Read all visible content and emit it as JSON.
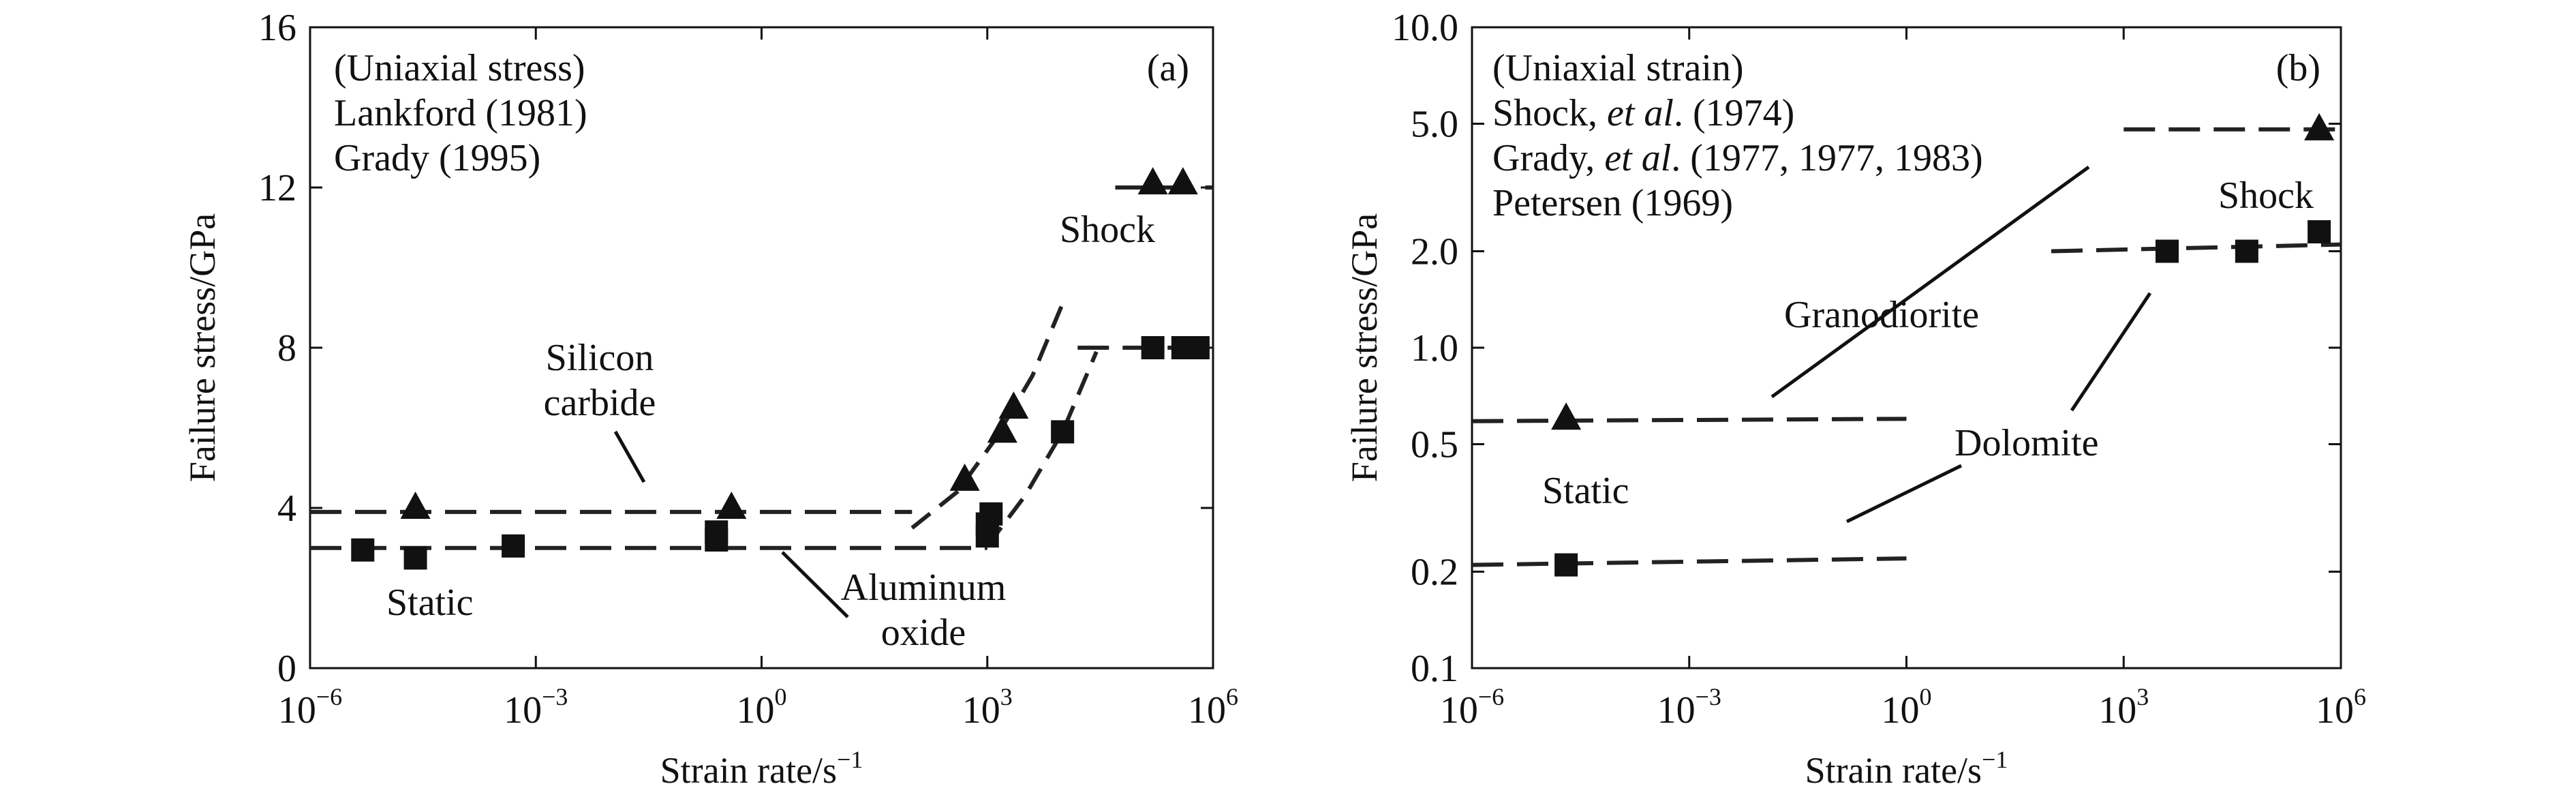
{
  "chart_data": [
    {
      "type": "scatter",
      "panel": "(a)",
      "title": "",
      "xlabel": "Strain rate/s",
      "xlabel_exp": "−1",
      "ylabel": "Failure stress/GPa",
      "xscale": "log",
      "xlim_exp": [
        -6,
        6
      ],
      "ylim": [
        0,
        16
      ],
      "xticks": [
        {
          "exp": -6,
          "base": "10",
          "sup": "−6"
        },
        {
          "exp": -3,
          "base": "10",
          "sup": "−3"
        },
        {
          "exp": 0,
          "base": "10",
          "sup": "0"
        },
        {
          "exp": 3,
          "base": "10",
          "sup": "3"
        },
        {
          "exp": 6,
          "base": "10",
          "sup": "6"
        }
      ],
      "yticks": [
        {
          "v": 0,
          "label": "0"
        },
        {
          "v": 4,
          "label": "4"
        },
        {
          "v": 8,
          "label": "8"
        },
        {
          "v": 12,
          "label": "12"
        },
        {
          "v": 16,
          "label": "16"
        }
      ],
      "legend_text": [
        "(Uniaxial stress)",
        "Lankford (1981)",
        "Grady (1995)"
      ],
      "series": [
        {
          "name": "Silicon carbide",
          "marker": "triangle",
          "points": [
            [
              -4.6,
              4.0
            ],
            [
              -0.4,
              4.0
            ],
            [
              2.7,
              4.7
            ],
            [
              3.2,
              5.9
            ],
            [
              3.35,
              6.5
            ],
            [
              5.2,
              12.1
            ],
            [
              5.6,
              12.1
            ]
          ],
          "lines": [
            {
              "style": "dashed",
              "points": [
                [
                  -6,
                  3.9
                ],
                [
                  2.0,
                  3.9
                ]
              ]
            },
            {
              "style": "dashed",
              "points": [
                [
                  2.0,
                  3.5
                ],
                [
                  2.6,
                  4.4
                ],
                [
                  3.1,
                  5.7
                ],
                [
                  3.6,
                  7.3
                ],
                [
                  4.0,
                  9.1
                ]
              ]
            },
            {
              "style": "dashed",
              "points": [
                [
                  4.7,
                  12.0
                ],
                [
                  6,
                  12.0
                ]
              ]
            }
          ]
        },
        {
          "name": "Aluminum oxide",
          "marker": "square",
          "points": [
            [
              -5.3,
              2.95
            ],
            [
              -4.6,
              2.75
            ],
            [
              -3.3,
              3.05
            ],
            [
              -0.6,
              3.2
            ],
            [
              -0.6,
              3.4
            ],
            [
              3.0,
              3.3
            ],
            [
              3.0,
              3.6
            ],
            [
              3.05,
              3.85
            ],
            [
              4.0,
              5.9
            ],
            [
              5.2,
              8.0
            ],
            [
              5.6,
              8.0
            ],
            [
              5.8,
              8.0
            ]
          ],
          "lines": [
            {
              "style": "dashed",
              "points": [
                [
                  -6,
                  3.0
                ],
                [
                  3.0,
                  3.0
                ]
              ]
            },
            {
              "style": "dashed",
              "points": [
                [
                  3.0,
                  3.05
                ],
                [
                  3.5,
                  4.3
                ],
                [
                  4.0,
                  5.9
                ],
                [
                  4.45,
                  7.9
                ]
              ]
            },
            {
              "style": "dashed",
              "points": [
                [
                  4.2,
                  8.0
                ],
                [
                  6,
                  8.0
                ]
              ]
            }
          ]
        }
      ],
      "annotations": [
        {
          "key": "silicon",
          "lines": [
            "Silicon",
            "carbide"
          ]
        },
        {
          "key": "alumina",
          "lines": [
            "Aluminum",
            "oxide"
          ]
        },
        {
          "key": "static",
          "lines": [
            "Static"
          ]
        },
        {
          "key": "shock",
          "lines": [
            "Shock"
          ]
        }
      ]
    },
    {
      "type": "scatter",
      "panel": "(b)",
      "title": "",
      "xlabel": "Strain rate/s",
      "xlabel_exp": "−1",
      "ylabel": "Failure stress/GPa",
      "xscale": "log",
      "yscale": "log",
      "xlim_exp": [
        -6,
        6
      ],
      "ylim": [
        0.1,
        10.0
      ],
      "xticks": [
        {
          "exp": -6,
          "base": "10",
          "sup": "−6"
        },
        {
          "exp": -3,
          "base": "10",
          "sup": "−3"
        },
        {
          "exp": 0,
          "base": "10",
          "sup": "0"
        },
        {
          "exp": 3,
          "base": "10",
          "sup": "3"
        },
        {
          "exp": 6,
          "base": "10",
          "sup": "6"
        }
      ],
      "yticks": [
        {
          "v": 0.1,
          "label": "0.1"
        },
        {
          "v": 0.2,
          "label": "0.2"
        },
        {
          "v": 0.5,
          "label": "0.5"
        },
        {
          "v": 1.0,
          "label": "1.0"
        },
        {
          "v": 2.0,
          "label": "2.0"
        },
        {
          "v": 5.0,
          "label": "5.0"
        },
        {
          "v": 10.0,
          "label": "10.0"
        }
      ],
      "legend_text": [
        {
          "pre": "(Uniaxial strain)",
          "ital": "",
          "post": ""
        },
        {
          "pre": "Shock, ",
          "ital": "et al",
          "post": ". (1974)"
        },
        {
          "pre": "Grady, ",
          "ital": "et al",
          "post": ". (1977, 1977, 1983)"
        },
        {
          "pre": "Petersen (1969)",
          "ital": "",
          "post": ""
        }
      ],
      "series": [
        {
          "name": "Granodiorite",
          "marker": "triangle",
          "points": [
            [
              -4.7,
              0.6
            ],
            [
              5.7,
              4.8
            ]
          ],
          "lines": [
            {
              "style": "dashed",
              "points": [
                [
                  -6,
                  0.59
                ],
                [
                  0.0,
                  0.6
                ]
              ]
            },
            {
              "style": "dashed",
              "points": [
                [
                  3.0,
                  4.8
                ],
                [
                  6,
                  4.8
                ]
              ]
            }
          ]
        },
        {
          "name": "Dolomite",
          "marker": "square",
          "points": [
            [
              -4.7,
              0.21
            ],
            [
              3.6,
              2.0
            ],
            [
              4.7,
              2.0
            ],
            [
              5.7,
              2.3
            ]
          ],
          "lines": [
            {
              "style": "dashed",
              "points": [
                [
                  -6,
                  0.21
                ],
                [
                  0.0,
                  0.22
                ]
              ]
            },
            {
              "style": "dashed",
              "points": [
                [
                  2.0,
                  2.0
                ],
                [
                  6,
                  2.1
                ]
              ]
            }
          ]
        }
      ],
      "annotations": [
        {
          "key": "granodiorite",
          "lines": [
            "Granodiorite"
          ]
        },
        {
          "key": "dolomite",
          "lines": [
            "Dolomite"
          ]
        },
        {
          "key": "static",
          "lines": [
            "Static"
          ]
        },
        {
          "key": "shock",
          "lines": [
            "Shock"
          ]
        }
      ]
    }
  ]
}
